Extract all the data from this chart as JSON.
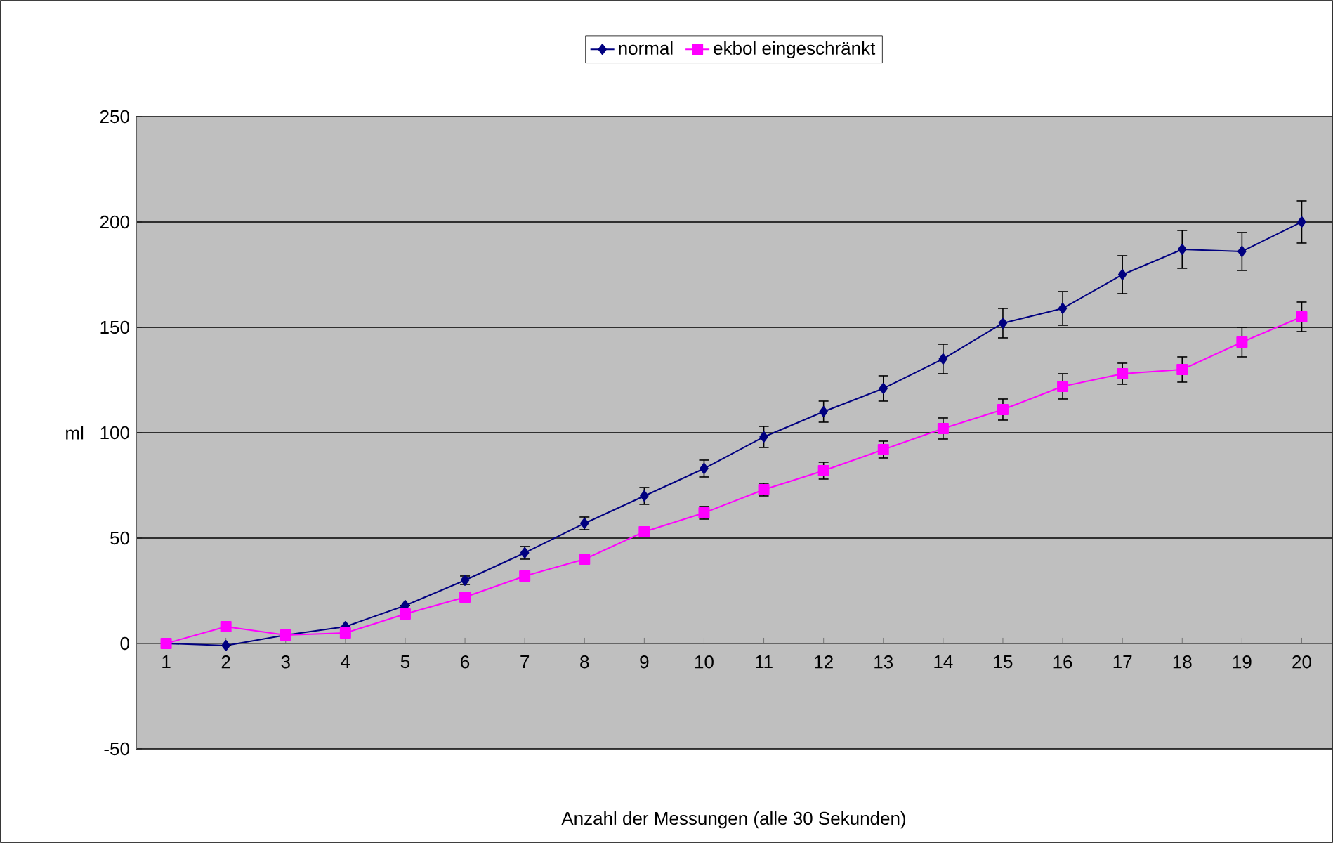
{
  "chart_data": {
    "type": "line",
    "xlabel": "Anzahl der Messungen (alle 30 Sekunden)",
    "ylabel": "ml",
    "categories": [
      "1",
      "2",
      "3",
      "4",
      "5",
      "6",
      "7",
      "8",
      "9",
      "10",
      "11",
      "12",
      "13",
      "14",
      "15",
      "16",
      "17",
      "18",
      "19",
      "20"
    ],
    "series": [
      {
        "name": "normal",
        "color": "#000080",
        "marker": "diamond",
        "values": [
          0,
          -1,
          4,
          8,
          18,
          30,
          43,
          57,
          70,
          83,
          98,
          110,
          121,
          135,
          152,
          159,
          175,
          187,
          186,
          200
        ],
        "errors": [
          null,
          null,
          null,
          null,
          null,
          2,
          3,
          3,
          4,
          4,
          5,
          5,
          6,
          7,
          7,
          8,
          9,
          9,
          9,
          10
        ]
      },
      {
        "name": "ekbol eingeschränkt",
        "color": "#ff00ff",
        "marker": "square",
        "values": [
          0,
          8,
          4,
          5,
          14,
          22,
          32,
          40,
          53,
          62,
          73,
          82,
          92,
          102,
          111,
          122,
          128,
          130,
          143,
          155
        ],
        "errors": [
          null,
          null,
          null,
          null,
          null,
          null,
          null,
          null,
          2,
          3,
          3,
          4,
          4,
          5,
          5,
          6,
          5,
          6,
          7,
          7
        ]
      }
    ],
    "ylim": [
      -50,
      250
    ],
    "yticks": [
      -50,
      0,
      50,
      100,
      150,
      200,
      250
    ],
    "grid": "y",
    "legend": "top",
    "line_style": "solid"
  }
}
